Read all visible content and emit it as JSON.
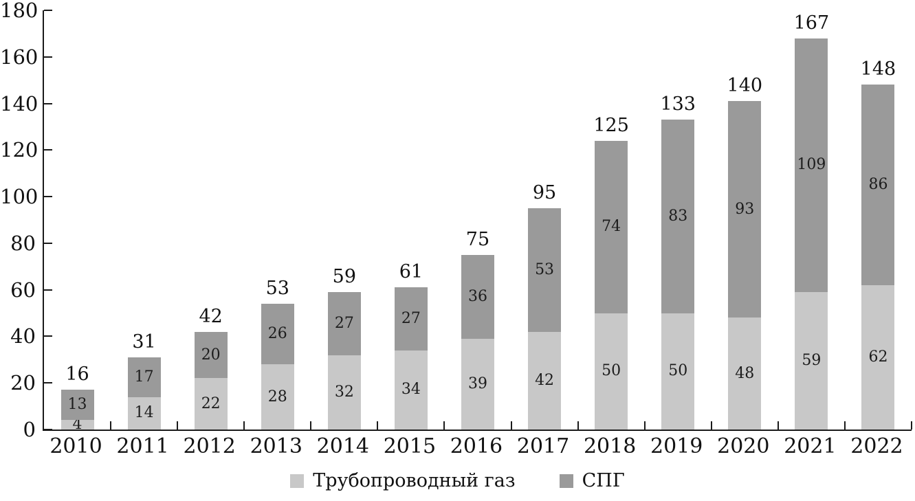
{
  "chart_data": {
    "type": "bar",
    "stacked": true,
    "title": "",
    "xlabel": "",
    "ylabel": "",
    "categories": [
      "2010",
      "2011",
      "2012",
      "2013",
      "2014",
      "2015",
      "2016",
      "2017",
      "2018",
      "2019",
      "2020",
      "2021",
      "2022"
    ],
    "series": [
      {
        "name": "Трубопроводный газ",
        "color": "#c8c8c8",
        "values": [
          4,
          14,
          22,
          28,
          32,
          34,
          39,
          42,
          50,
          50,
          48,
          59,
          62
        ]
      },
      {
        "name": "СПГ",
        "color": "#9a9a9a",
        "values": [
          13,
          17,
          20,
          26,
          27,
          27,
          36,
          53,
          74,
          83,
          93,
          109,
          86
        ]
      }
    ],
    "totals": [
      16,
      31,
      42,
      53,
      59,
      61,
      75,
      95,
      125,
      133,
      140,
      167,
      148
    ],
    "ylim": [
      0,
      180
    ],
    "yticks": [
      0,
      20,
      40,
      60,
      80,
      100,
      120,
      140,
      160,
      180
    ],
    "grid": false,
    "legend_position": "bottom"
  },
  "legend": {
    "items": [
      {
        "label": "Трубопроводный газ",
        "color": "#c8c8c8"
      },
      {
        "label": "СПГ",
        "color": "#9a9a9a"
      }
    ]
  }
}
